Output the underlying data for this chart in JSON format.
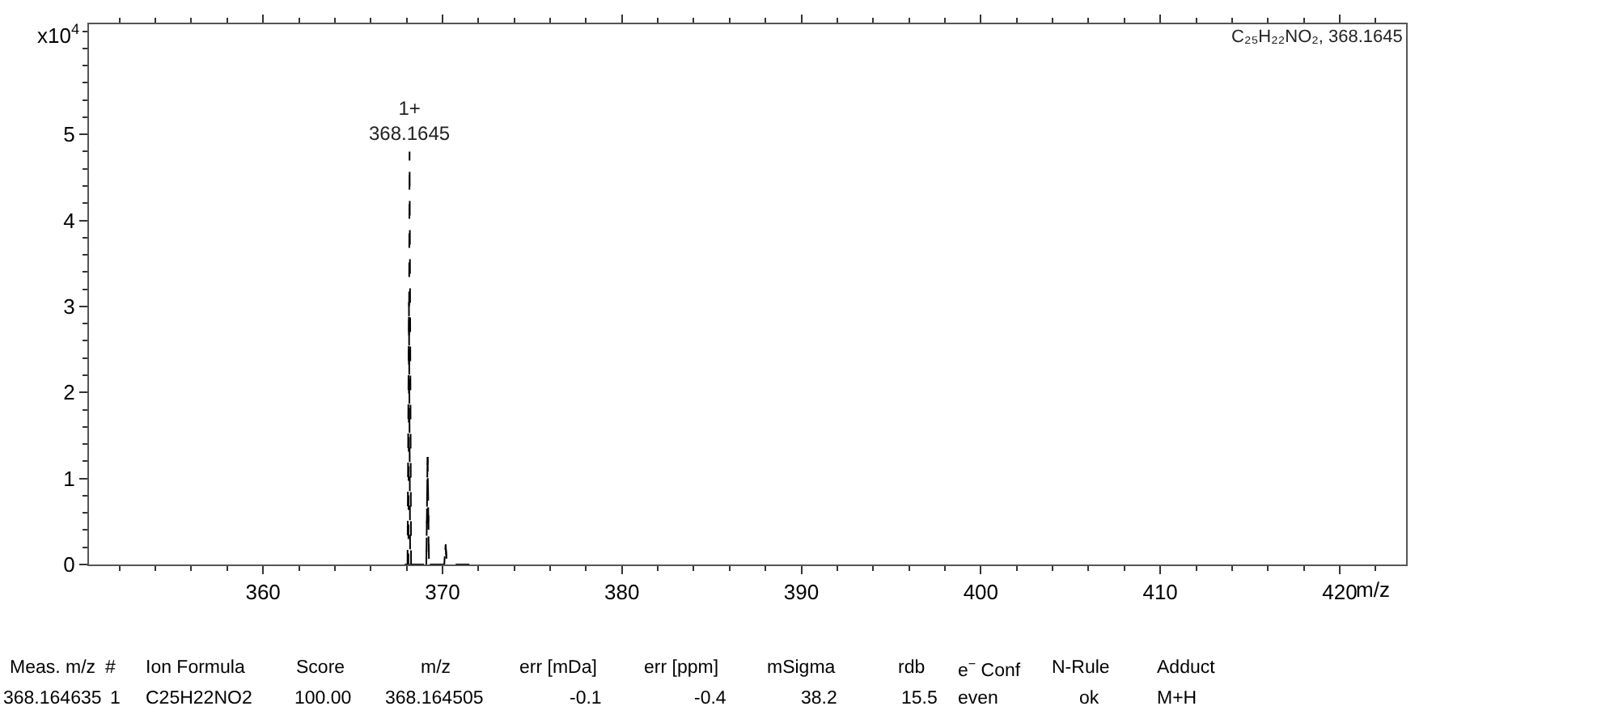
{
  "chart_data": {
    "type": "line",
    "ylabel": "x10$^{4}$",
    "xlabel": "m/z",
    "xlim": [
      350.3,
      423.7
    ],
    "ylim": [
      0,
      6.28
    ],
    "xticks": [
      360,
      370,
      380,
      390,
      400,
      410,
      420
    ],
    "yticks": [
      0,
      1,
      2,
      3,
      4,
      5
    ],
    "grid": false,
    "line_style": "dashed",
    "marker": "none",
    "series": [
      {
        "color": "#000000",
        "x": [
          367.9,
          368.1,
          368.1645,
          368.25,
          368.4,
          369.0,
          369.1,
          369.17,
          369.25,
          369.4,
          370.0,
          370.1,
          370.17,
          370.25,
          370.4,
          371.5
        ],
        "values": [
          0,
          0,
          4.8,
          0,
          0,
          0,
          0,
          1.3,
          0,
          0,
          0,
          0,
          0.25,
          0,
          0,
          0
        ]
      },
      {
        "color": "#000000",
        "x": [
          368.05,
          368.13,
          368.2,
          369.1,
          369.17,
          369.24,
          370.1,
          370.17,
          370.24
        ],
        "values": [
          0,
          3.05,
          0,
          0,
          1.25,
          0,
          0,
          0.22,
          0
        ]
      }
    ],
    "annotations": [
      "C₂₅H₂₂NO₂, 368.1645",
      {
        "text": "1+\n368.1645",
        "x": 368.1645,
        "y": 4.8
      },
      "Meas. m/z",
      "#",
      "Ion Formula",
      "Score",
      "m/z",
      "err [mDa]",
      "err [ppm]",
      "mSigma",
      "rdb",
      "e$^{−}$ Conf",
      "N-Rule",
      "Adduct",
      "368.164635",
      "1",
      "C25H22NO2",
      "100.00",
      "368.164505",
      "-0.1",
      "-0.4",
      "38.2",
      "15.5",
      "even",
      "ok",
      "M+H"
    ]
  }
}
